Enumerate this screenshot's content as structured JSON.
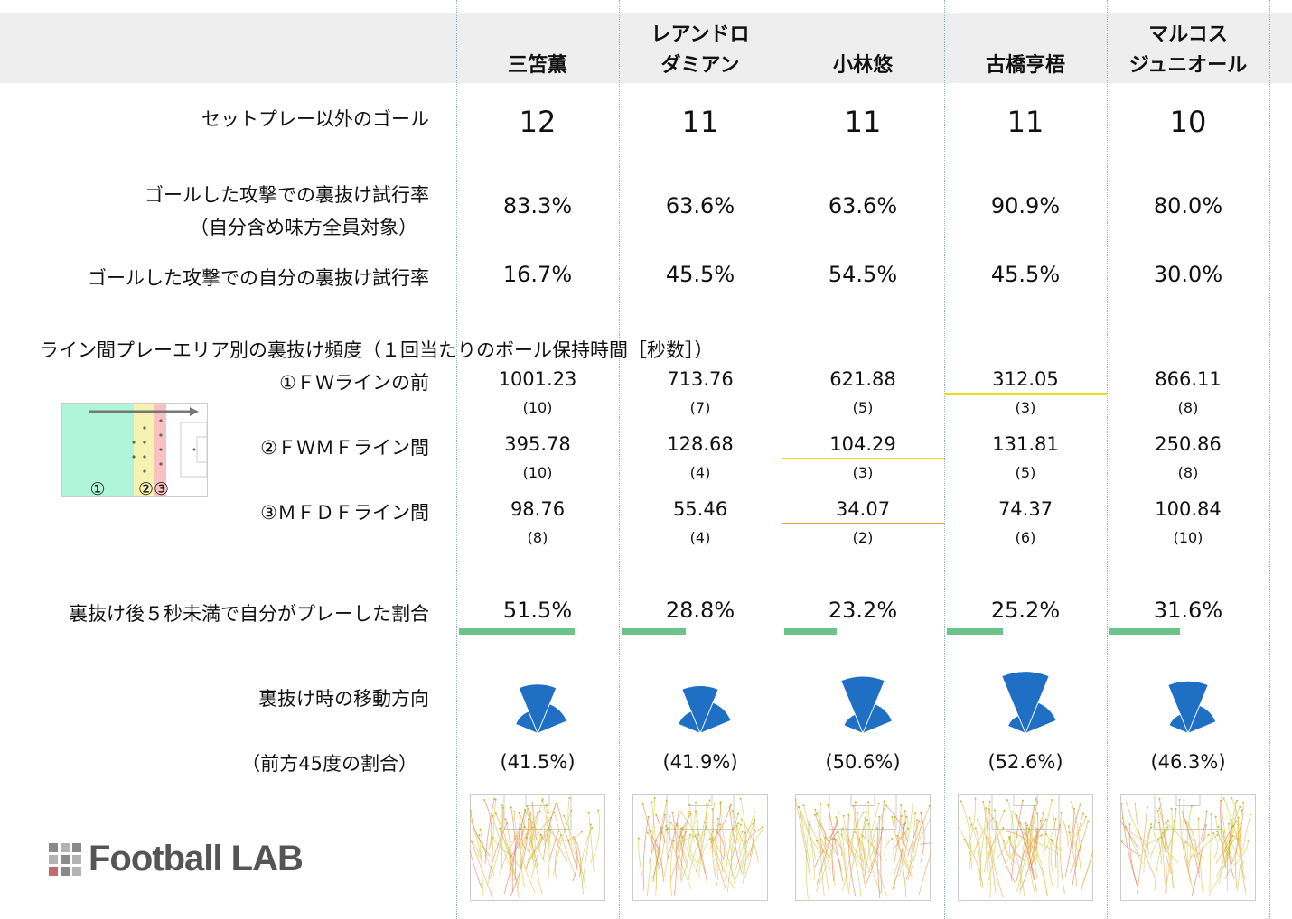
{
  "players": [
    {
      "name_lines": [
        "",
        "三笘薫"
      ],
      "goals": "12",
      "team_run_rate": "83.3%",
      "own_run_rate": "16.7%",
      "zones": [
        {
          "value": "1001.23",
          "count": "(10)"
        },
        {
          "value": "395.78",
          "count": "(10)"
        },
        {
          "value": "98.76",
          "count": "(8)"
        }
      ],
      "play_within_5s": "51.5%",
      "play_within_5s_fraction": 0.515,
      "forward_45": "(41.5%)"
    },
    {
      "name_lines": [
        "レアンドロ",
        "ダミアン"
      ],
      "goals": "11",
      "team_run_rate": "63.6%",
      "own_run_rate": "45.5%",
      "zones": [
        {
          "value": "713.76",
          "count": "(7)"
        },
        {
          "value": "128.68",
          "count": "(4)"
        },
        {
          "value": "55.46",
          "count": "(4)"
        }
      ],
      "play_within_5s": "28.8%",
      "play_within_5s_fraction": 0.288,
      "forward_45": "(41.9%)"
    },
    {
      "name_lines": [
        "",
        "小林悠"
      ],
      "goals": "11",
      "team_run_rate": "63.6%",
      "own_run_rate": "54.5%",
      "zones": [
        {
          "value": "621.88",
          "count": "(5)"
        },
        {
          "value": "104.29",
          "count": "(3)"
        },
        {
          "value": "34.07",
          "count": "(2)"
        }
      ],
      "play_within_5s": "23.2%",
      "play_within_5s_fraction": 0.232,
      "forward_45": "(50.6%)"
    },
    {
      "name_lines": [
        "",
        "古橋亨梧"
      ],
      "goals": "11",
      "team_run_rate": "90.9%",
      "own_run_rate": "45.5%",
      "zones": [
        {
          "value": "312.05",
          "count": "(3)"
        },
        {
          "value": "131.81",
          "count": "(5)"
        },
        {
          "value": "74.37",
          "count": "(6)"
        }
      ],
      "play_within_5s": "25.2%",
      "play_within_5s_fraction": 0.252,
      "forward_45": "(52.6%)"
    },
    {
      "name_lines": [
        "マルコス",
        "ジュニオール"
      ],
      "goals": "10",
      "team_run_rate": "80.0%",
      "own_run_rate": "30.0%",
      "zones": [
        {
          "value": "866.11",
          "count": "(8)"
        },
        {
          "value": "250.86",
          "count": "(8)"
        },
        {
          "value": "100.84",
          "count": "(10)"
        }
      ],
      "play_within_5s": "31.6%",
      "play_within_5s_fraction": 0.316,
      "forward_45": "(46.3%)"
    }
  ],
  "labels": {
    "goals": "セットプレー以外のゴール",
    "team_run_rate_1": "ゴールした攻撃での裏抜け試行率",
    "team_run_rate_2": "（自分含め味方全員対象）",
    "own_run_rate": "ゴールした攻撃での自分の裏抜け試行率",
    "section_title": "ライン間プレーエリア別の裏抜け頻度（１回当たりのボール保持時間［秒数］）",
    "zone_1": "①ＦＷラインの前",
    "zone_2": "②ＦＷＭＦライン間",
    "zone_3": "③ＭＦＤＦライン間",
    "play_within_5s": "裏抜け後５秒未満で自分がプレーした割合",
    "direction": "裏抜け時の移動方向",
    "forward_45": "（前方45度の割合）"
  },
  "pitch_markers": [
    "①",
    "②③"
  ],
  "logo": {
    "text": "Football LAB"
  },
  "highlights": [
    {
      "player": 3,
      "zone": 1,
      "color": "#e6dc2a"
    },
    {
      "player": 2,
      "zone": 2,
      "color": "#e6dc2a"
    },
    {
      "player": 2,
      "zone": 3,
      "color": "#f39a2a"
    }
  ],
  "colors": {
    "fan": "#1f6fc4",
    "bar": "#6cc28a",
    "header_bg": "#eeeeee"
  }
}
